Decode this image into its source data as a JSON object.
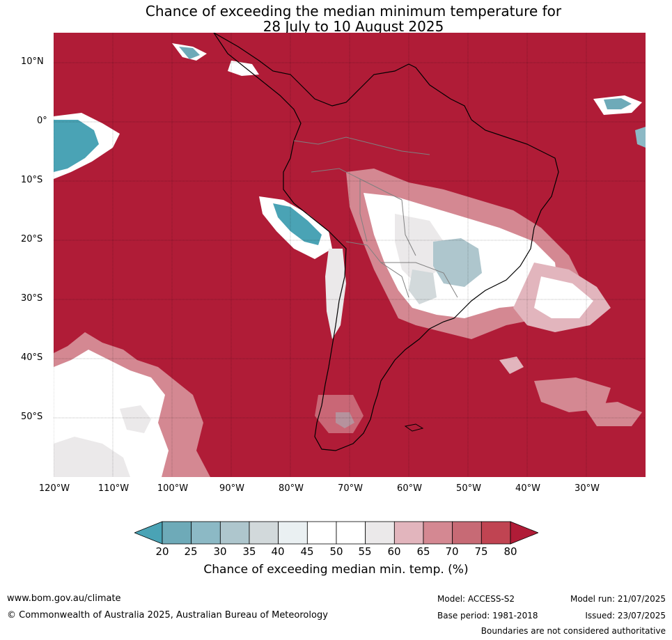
{
  "title_line1": "Chance of exceeding the median minimum temperature for",
  "title_line2": "28 July to 10 August 2025",
  "map": {
    "lat_labels": [
      "10°N",
      "0°",
      "10°S",
      "20°S",
      "30°S",
      "40°S",
      "50°S"
    ],
    "lon_labels": [
      "120°W",
      "110°W",
      "100°W",
      "90°W",
      "80°W",
      "70°W",
      "60°W",
      "50°W",
      "40°W",
      "30°W"
    ],
    "ocean_color": "#b01c37"
  },
  "colorbar": {
    "ticks": [
      "20",
      "25",
      "30",
      "35",
      "40",
      "45",
      "50",
      "55",
      "60",
      "65",
      "70",
      "75",
      "80"
    ],
    "colors": [
      "#4aa3b5",
      "#6eaab8",
      "#8cb9c5",
      "#aec6cd",
      "#d2d9db",
      "#eaf0f2",
      "#ffffff",
      "#ffffff",
      "#ebe9ea",
      "#e2b5bd",
      "#d48892",
      "#c76a75",
      "#c04452",
      "#b01c37"
    ],
    "label": "Chance of exceeding median min. temp. (%)"
  },
  "footer": {
    "url": "www.bom.gov.au/climate",
    "copyright": "© Commonwealth of Australia 2025, Australian Bureau of Meteorology",
    "model": "Model: ACCESS-S2",
    "base_period": "Base period: 1981-2018",
    "model_run": "Model run: 21/07/2025",
    "issued": "Issued: 23/07/2025",
    "disclaimer": "Boundaries are not considered authoritative"
  }
}
